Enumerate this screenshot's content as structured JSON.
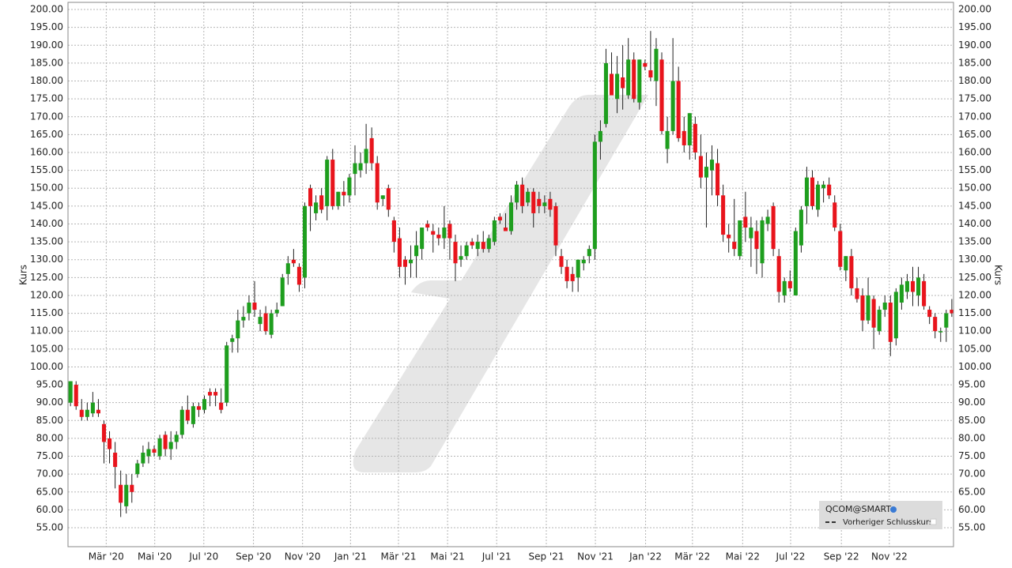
{
  "chart_data": {
    "type": "candlestick",
    "ylabel": "Kurs",
    "ylim": [
      49.7,
      202
    ],
    "xlim": [
      -0.45,
      158.3
    ],
    "grid": true,
    "legend": "bottom-right",
    "up_color": "#1e9e1e",
    "down_color": "#e8141c",
    "yticks": [
      {
        "value": 55,
        "label": "55.00"
      },
      {
        "value": 60,
        "label": "60.00"
      },
      {
        "value": 65,
        "label": "65.00"
      },
      {
        "value": 70,
        "label": "70.00"
      },
      {
        "value": 75,
        "label": "75.00"
      },
      {
        "value": 80,
        "label": "80.00"
      },
      {
        "value": 85,
        "label": "85.00"
      },
      {
        "value": 90,
        "label": "90.00"
      },
      {
        "value": 95,
        "label": "95.00"
      },
      {
        "value": 100,
        "label": "100.00"
      },
      {
        "value": 105,
        "label": "105.00"
      },
      {
        "value": 110,
        "label": "110.00"
      },
      {
        "value": 115,
        "label": "115.00"
      },
      {
        "value": 120,
        "label": "120.00"
      },
      {
        "value": 125,
        "label": "125.00"
      },
      {
        "value": 130,
        "label": "130.00"
      },
      {
        "value": 135,
        "label": "135.00"
      },
      {
        "value": 140,
        "label": "140.00"
      },
      {
        "value": 145,
        "label": "145.00"
      },
      {
        "value": 150,
        "label": "150.00"
      },
      {
        "value": 155,
        "label": "155.00"
      },
      {
        "value": 160,
        "label": "160.00"
      },
      {
        "value": 165,
        "label": "165.00"
      },
      {
        "value": 170,
        "label": "170.00"
      },
      {
        "value": 175,
        "label": "175.00"
      },
      {
        "value": 180,
        "label": "180.00"
      },
      {
        "value": 185,
        "label": "185.00"
      },
      {
        "value": 190,
        "label": "190.00"
      },
      {
        "value": 195,
        "label": "195.00"
      },
      {
        "value": 200,
        "label": "200.00"
      }
    ],
    "xticks": [
      {
        "value": 6.4,
        "label": "Mär '20"
      },
      {
        "value": 15.1,
        "label": "Mai '20"
      },
      {
        "value": 23.9,
        "label": "Jul '20"
      },
      {
        "value": 32.8,
        "label": "Sep '20"
      },
      {
        "value": 41.6,
        "label": "Nov '20"
      },
      {
        "value": 50.2,
        "label": "Jan '21"
      },
      {
        "value": 58.8,
        "label": "Mär '21"
      },
      {
        "value": 67.6,
        "label": "Mai '21"
      },
      {
        "value": 76.4,
        "label": "Jul '21"
      },
      {
        "value": 85.3,
        "label": "Sep '21"
      },
      {
        "value": 94.1,
        "label": "Nov '21"
      },
      {
        "value": 103.1,
        "label": "Jan '22"
      },
      {
        "value": 111.5,
        "label": "Mär '22"
      },
      {
        "value": 120.5,
        "label": "Mai '22"
      },
      {
        "value": 129.1,
        "label": "Jul '22"
      },
      {
        "value": 138.2,
        "label": "Sep '22"
      },
      {
        "value": 146.8,
        "label": "Nov '22"
      }
    ],
    "series": [
      {
        "name": "QCOM@SMART",
        "open": [
          90,
          95,
          88,
          86,
          87,
          88,
          84,
          80,
          76,
          67,
          61,
          67,
          70,
          73,
          75,
          77,
          75,
          81,
          77,
          79,
          81,
          88,
          84,
          89,
          88,
          93,
          93,
          90,
          90,
          107,
          108,
          113,
          115,
          118,
          112,
          115,
          109,
          115,
          117,
          126,
          130,
          128,
          125,
          150,
          143,
          148,
          145,
          158,
          145,
          149,
          148,
          154,
          155,
          157,
          164,
          157,
          147,
          150,
          141,
          136,
          130,
          129,
          131,
          133,
          140,
          138,
          137,
          136,
          140,
          135,
          130,
          131,
          135,
          133,
          135,
          133,
          135,
          142,
          139,
          138,
          146,
          151,
          146,
          149,
          147,
          145,
          147,
          145,
          131,
          128,
          126,
          125,
          129,
          131,
          133,
          163,
          168,
          182,
          175,
          181,
          176,
          186,
          174,
          185,
          183,
          180,
          186,
          161,
          166,
          180,
          166,
          162,
          168,
          159,
          153,
          155,
          157,
          148,
          137,
          135,
          131,
          142,
          136,
          138,
          129,
          140,
          145,
          131,
          120,
          124,
          120,
          134,
          145,
          153,
          144,
          150,
          151,
          146,
          138,
          127,
          131,
          122,
          120,
          113,
          119,
          110,
          116,
          118,
          108,
          118,
          121,
          124,
          120,
          124,
          116,
          114,
          110,
          111,
          116
        ],
        "high": [
          96,
          96,
          91,
          90,
          93,
          91,
          85,
          82,
          79,
          71,
          70,
          70,
          74,
          78,
          79,
          78,
          81,
          82,
          82,
          82,
          89,
          92,
          90,
          90,
          92,
          94,
          94,
          94,
          107,
          109,
          116,
          117,
          120,
          124,
          116,
          117,
          116,
          118,
          126,
          131,
          133,
          129,
          146,
          151,
          148,
          150,
          159,
          161,
          149,
          152,
          154,
          162,
          160,
          168,
          167,
          159,
          148,
          151,
          142,
          139,
          131,
          134,
          138,
          139,
          141,
          140,
          139,
          145,
          141,
          137,
          134,
          135,
          136,
          137,
          138,
          137,
          142,
          143,
          143,
          148,
          152,
          153,
          150,
          150,
          149,
          148,
          149,
          146,
          133,
          130,
          128,
          130,
          131,
          134,
          165,
          169,
          189,
          188,
          187,
          190,
          192,
          188,
          186,
          186,
          194,
          192,
          188,
          170,
          192,
          184,
          170,
          171,
          170,
          165,
          160,
          162,
          161,
          151,
          140,
          147,
          141,
          149,
          142,
          141,
          142,
          144,
          146,
          133,
          125,
          127,
          139,
          145,
          156,
          155,
          152,
          152,
          153,
          148,
          140,
          131,
          133,
          125,
          122,
          125,
          120,
          117,
          120,
          120,
          122,
          125,
          126,
          128,
          128,
          126,
          117,
          115,
          111,
          116,
          119
        ],
        "low": [
          89,
          88,
          85,
          85,
          86,
          86,
          73,
          73,
          66,
          58,
          59,
          62,
          69,
          72,
          73,
          75,
          74,
          75,
          74,
          77,
          80,
          84,
          83,
          86,
          87,
          89,
          89,
          87,
          89,
          104,
          104,
          111,
          113,
          114,
          110,
          109,
          108,
          114,
          117,
          123,
          128,
          121,
          122,
          138,
          141,
          143,
          141,
          144,
          144,
          145,
          146,
          148,
          153,
          154,
          155,
          144,
          145,
          142,
          132,
          125,
          123,
          125,
          125,
          130,
          138,
          132,
          134,
          133,
          130,
          124,
          128,
          130,
          133,
          131,
          132,
          132,
          134,
          140,
          138,
          137,
          144,
          143,
          145,
          139,
          143,
          143,
          142,
          131,
          126,
          122,
          121,
          121,
          127,
          129,
          130,
          158,
          167,
          177,
          171,
          172,
          175,
          174,
          172,
          183,
          180,
          173,
          165,
          157,
          165,
          163,
          160,
          158,
          158,
          150,
          139,
          148,
          145,
          135,
          132,
          131,
          130,
          135,
          128,
          126,
          125,
          138,
          131,
          118,
          118,
          121,
          120,
          132,
          140,
          144,
          142,
          146,
          147,
          138,
          127,
          124,
          120,
          118,
          110,
          112,
          105,
          109,
          114,
          103,
          106,
          116,
          119,
          117,
          117,
          116,
          112,
          108,
          107,
          107,
          114
        ],
        "close": [
          96,
          89,
          86,
          88,
          90,
          87,
          79,
          77,
          72,
          62,
          67,
          65,
          73,
          76,
          77,
          76,
          80,
          77,
          79,
          81,
          88,
          85,
          89,
          88,
          91,
          92,
          92,
          88,
          106,
          108,
          113,
          114,
          118,
          116,
          114,
          110,
          115,
          116,
          125,
          129,
          129,
          123,
          145,
          145,
          146,
          144,
          158,
          145,
          149,
          148,
          153,
          157,
          157,
          161,
          157,
          146,
          148,
          144,
          135,
          128,
          128,
          130,
          134,
          139,
          139,
          137,
          136,
          139,
          136,
          129,
          131,
          134,
          134,
          135,
          133,
          136,
          141,
          141,
          138,
          146,
          151,
          145,
          149,
          143,
          145,
          146,
          144,
          134,
          128,
          124,
          124,
          130,
          130,
          133,
          163,
          166,
          185,
          176,
          182,
          178,
          186,
          175,
          186,
          184,
          181,
          189,
          166,
          166,
          180,
          164,
          162,
          171,
          160,
          153,
          156,
          158,
          148,
          137,
          136,
          133,
          141,
          139,
          139,
          133,
          141,
          142,
          133,
          121,
          124,
          122,
          138,
          144,
          153,
          145,
          151,
          151,
          148,
          139,
          128,
          131,
          122,
          119,
          113,
          120,
          111,
          116,
          118,
          107,
          121,
          123,
          124,
          121,
          125,
          117,
          114,
          110,
          110,
          115,
          115
        ]
      },
      {
        "name": "Vorheriger Schlusskurs",
        "style": "dashed",
        "color": "#333333"
      }
    ]
  }
}
